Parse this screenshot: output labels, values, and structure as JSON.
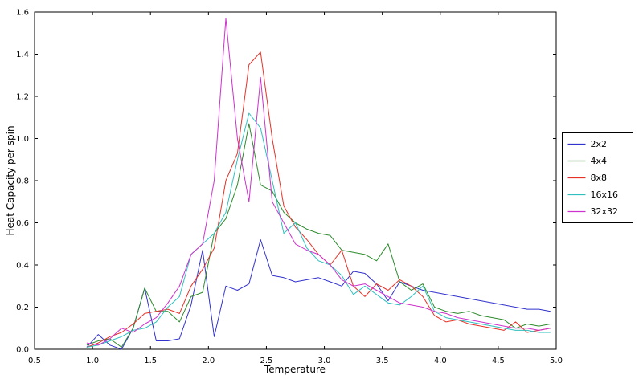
{
  "figure": {
    "background": "#ffffff"
  },
  "chart_data": {
    "type": "line",
    "title": "",
    "xlabel": "Temperature",
    "ylabel": "Heat Capacity per spin",
    "xlim": [
      0.5,
      5.0
    ],
    "ylim": [
      0.0,
      1.6
    ],
    "xticks": [
      0.5,
      1.0,
      1.5,
      2.0,
      2.5,
      3.0,
      3.5,
      4.0,
      4.5,
      5.0
    ],
    "yticks": [
      0.0,
      0.2,
      0.4,
      0.6,
      0.8,
      1.0,
      1.2,
      1.4,
      1.6
    ],
    "grid": false,
    "legend_position": "outside-right",
    "x": [
      0.95,
      1.05,
      1.15,
      1.25,
      1.35,
      1.45,
      1.55,
      1.65,
      1.75,
      1.85,
      1.95,
      2.05,
      2.15,
      2.25,
      2.35,
      2.45,
      2.55,
      2.65,
      2.75,
      2.85,
      2.95,
      3.05,
      3.15,
      3.25,
      3.35,
      3.45,
      3.55,
      3.65,
      3.75,
      3.85,
      3.95,
      4.05,
      4.15,
      4.25,
      4.35,
      4.45,
      4.55,
      4.65,
      4.75,
      4.85,
      4.95
    ],
    "series": [
      {
        "name": "2x2",
        "color": "#3232cd",
        "values": [
          0.01,
          0.07,
          0.02,
          0.0,
          0.1,
          0.29,
          0.04,
          0.04,
          0.05,
          0.21,
          0.47,
          0.06,
          0.3,
          0.28,
          0.31,
          0.52,
          0.35,
          0.34,
          0.32,
          0.33,
          0.34,
          0.32,
          0.3,
          0.37,
          0.36,
          0.31,
          0.23,
          0.32,
          0.3,
          0.28,
          0.27,
          0.26,
          0.25,
          0.24,
          0.23,
          0.22,
          0.21,
          0.2,
          0.19,
          0.19,
          0.18
        ]
      },
      {
        "name": "4x4",
        "color": "#2e8b2e",
        "values": [
          0.02,
          0.04,
          0.05,
          0.01,
          0.1,
          0.29,
          0.18,
          0.18,
          0.13,
          0.25,
          0.27,
          0.55,
          0.62,
          0.78,
          1.07,
          0.78,
          0.75,
          0.65,
          0.6,
          0.57,
          0.55,
          0.54,
          0.47,
          0.46,
          0.45,
          0.42,
          0.5,
          0.32,
          0.28,
          0.31,
          0.2,
          0.18,
          0.17,
          0.18,
          0.16,
          0.15,
          0.14,
          0.1,
          0.12,
          0.11,
          0.12
        ]
      },
      {
        "name": "8x8",
        "color": "#e53228",
        "values": [
          0.01,
          0.03,
          0.06,
          0.08,
          0.12,
          0.17,
          0.18,
          0.19,
          0.17,
          0.3,
          0.38,
          0.48,
          0.8,
          0.93,
          1.35,
          1.41,
          1.0,
          0.68,
          0.58,
          0.52,
          0.45,
          0.4,
          0.47,
          0.3,
          0.25,
          0.31,
          0.28,
          0.33,
          0.3,
          0.25,
          0.16,
          0.13,
          0.14,
          0.12,
          0.11,
          0.1,
          0.09,
          0.13,
          0.08,
          0.09,
          0.1
        ]
      },
      {
        "name": "16x16",
        "color": "#2fbfbf",
        "values": [
          0.01,
          0.02,
          0.04,
          0.06,
          0.09,
          0.1,
          0.13,
          0.2,
          0.25,
          0.45,
          0.5,
          0.55,
          0.65,
          0.9,
          1.12,
          1.05,
          0.8,
          0.55,
          0.6,
          0.48,
          0.42,
          0.4,
          0.35,
          0.26,
          0.3,
          0.26,
          0.22,
          0.21,
          0.25,
          0.3,
          0.18,
          0.15,
          0.14,
          0.13,
          0.12,
          0.11,
          0.1,
          0.09,
          0.09,
          0.08,
          0.08
        ]
      },
      {
        "name": "32x32",
        "color": "#cd32cd",
        "values": [
          0.03,
          0.02,
          0.05,
          0.1,
          0.08,
          0.12,
          0.15,
          0.22,
          0.3,
          0.45,
          0.5,
          0.8,
          1.57,
          1.0,
          0.7,
          1.29,
          0.7,
          0.6,
          0.5,
          0.47,
          0.45,
          0.4,
          0.33,
          0.3,
          0.31,
          0.28,
          0.25,
          0.22,
          0.21,
          0.2,
          0.18,
          0.17,
          0.15,
          0.14,
          0.13,
          0.12,
          0.11,
          0.1,
          0.1,
          0.09,
          0.1
        ]
      }
    ]
  }
}
